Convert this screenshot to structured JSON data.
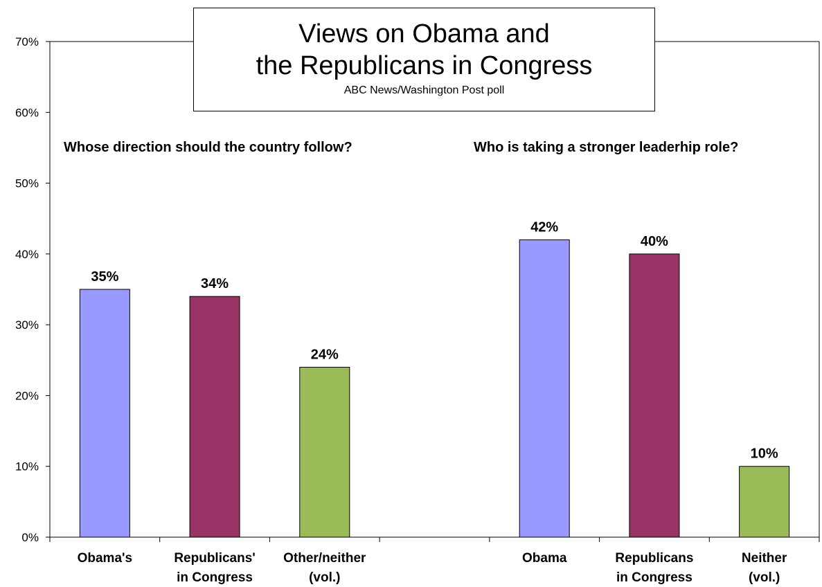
{
  "chart_data": {
    "type": "bar",
    "title": [
      "Views on Obama and",
      "the Republicans in Congress"
    ],
    "subtitle": "ABC News/Washington  Post poll",
    "ylim": [
      0,
      70
    ],
    "yticks": [
      "0%",
      "10%",
      "20%",
      "30%",
      "40%",
      "50%",
      "60%",
      "70%"
    ],
    "grid": false,
    "groups": [
      {
        "question": "Whose  direction should the country follow?",
        "categories": [
          [
            "Obama's"
          ],
          [
            "Republicans'",
            "in Congress"
          ],
          [
            "Other/neither",
            "(vol.)"
          ]
        ],
        "values": [
          35,
          34,
          24
        ],
        "labels": [
          "35%",
          "34%",
          "24%"
        ]
      },
      {
        "question": "Who is taking a stronger leaderhip role?",
        "categories": [
          [
            "Obama"
          ],
          [
            "Republicans",
            "in Congress"
          ],
          [
            "Neither",
            "(vol.)"
          ]
        ],
        "values": [
          42,
          40,
          10
        ],
        "labels": [
          "42%",
          "40%",
          "10%"
        ]
      }
    ],
    "colors": [
      "#9999FF",
      "#993366",
      "#9BBB59"
    ]
  }
}
